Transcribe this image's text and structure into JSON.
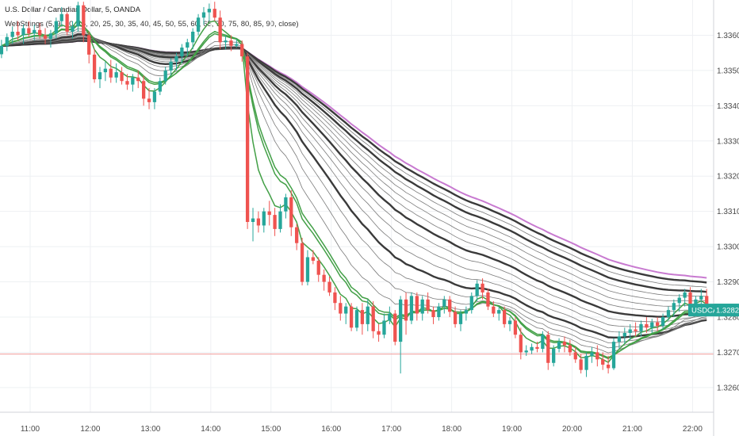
{
  "header": {
    "title": "U.S. Dollar / Canadian Dollar, 5, OANDA",
    "indicator": "WebStrings (5, 9, 10, 15, 20, 25, 30, 35, 40, 45, 50, 55, 60, 65, 70, 75, 80, 85, 90, close)"
  },
  "colors": {
    "up": "#26a69a",
    "down": "#ef5350",
    "grid": "#eef0f3",
    "axis_text": "#4a4a4a",
    "price_line": "#ef9a9a",
    "badge": "#26a69a",
    "ema_fast": "#43a047",
    "ema_thin": "#7a7a7a",
    "ema_thick": "#3a3a3a",
    "ema_slow": "#c87ad0"
  },
  "chart_data": {
    "type": "candlestick",
    "symbol": "USDCAD",
    "last_price": "1.32820",
    "y_ticks": [
      "1.33600",
      "1.33500",
      "1.33400",
      "1.33300",
      "1.33200",
      "1.33100",
      "1.33000",
      "1.32900",
      "1.32800",
      "1.32700",
      "1.32600"
    ],
    "y_tick_values": [
      1.336,
      1.335,
      1.334,
      1.333,
      1.332,
      1.331,
      1.33,
      1.329,
      1.328,
      1.327,
      1.326
    ],
    "x_ticks": [
      "11:00",
      "12:00",
      "13:00",
      "14:00",
      "15:00",
      "16:00",
      "17:00",
      "18:00",
      "19:00",
      "20:00",
      "21:00",
      "22:00"
    ],
    "x_tick_minutes": [
      660,
      720,
      780,
      840,
      900,
      960,
      1020,
      1080,
      1140,
      1200,
      1260,
      1320
    ],
    "ylim": [
      1.3253,
      1.337
    ],
    "xlim_minutes": [
      630,
      1341
    ],
    "horizontal_line": 1.32695,
    "ema_lengths": [
      5,
      9,
      10,
      15,
      20,
      25,
      30,
      35,
      40,
      45,
      50,
      55,
      60,
      65,
      70,
      75,
      80,
      85,
      90
    ],
    "candles": [
      [
        1.33546,
        1.33587,
        1.33535,
        1.3357
      ],
      [
        1.3357,
        1.33605,
        1.33555,
        1.33595
      ],
      [
        1.33595,
        1.33625,
        1.33575,
        1.3361
      ],
      [
        1.3361,
        1.3364,
        1.33585,
        1.336
      ],
      [
        1.336,
        1.3363,
        1.33575,
        1.3362
      ],
      [
        1.3362,
        1.3364,
        1.33595,
        1.33605
      ],
      [
        1.33605,
        1.3363,
        1.33585,
        1.33615
      ],
      [
        1.33615,
        1.33635,
        1.3359,
        1.336
      ],
      [
        1.336,
        1.3362,
        1.33575,
        1.3359
      ],
      [
        1.3359,
        1.33615,
        1.33565,
        1.33605
      ],
      [
        1.33605,
        1.3365,
        1.3359,
        1.3364
      ],
      [
        1.3364,
        1.3368,
        1.33625,
        1.3366
      ],
      [
        1.3366,
        1.33665,
        1.336,
        1.3361
      ],
      [
        1.3361,
        1.3364,
        1.3359,
        1.33625
      ],
      [
        1.33625,
        1.33695,
        1.3361,
        1.33685
      ],
      [
        1.33685,
        1.33695,
        1.3358,
        1.336
      ],
      [
        1.336,
        1.3361,
        1.3352,
        1.33545
      ],
      [
        1.33545,
        1.3356,
        1.33465,
        1.33475
      ],
      [
        1.33475,
        1.3351,
        1.3345,
        1.33495
      ],
      [
        1.33495,
        1.33525,
        1.3347,
        1.33505
      ],
      [
        1.33505,
        1.3353,
        1.33465,
        1.3348
      ],
      [
        1.3348,
        1.3352,
        1.33465,
        1.33495
      ],
      [
        1.33495,
        1.3351,
        1.3346,
        1.3347
      ],
      [
        1.3347,
        1.3349,
        1.33445,
        1.3346
      ],
      [
        1.3346,
        1.3349,
        1.3344,
        1.3348
      ],
      [
        1.3348,
        1.335,
        1.3345,
        1.3347
      ],
      [
        1.3347,
        1.33485,
        1.334,
        1.3342
      ],
      [
        1.3342,
        1.3345,
        1.3339,
        1.3341
      ],
      [
        1.3341,
        1.3345,
        1.3339,
        1.3344
      ],
      [
        1.3344,
        1.3348,
        1.3343,
        1.3347
      ],
      [
        1.3347,
        1.3351,
        1.3346,
        1.335
      ],
      [
        1.335,
        1.33535,
        1.33485,
        1.33525
      ],
      [
        1.33525,
        1.3355,
        1.335,
        1.3354
      ],
      [
        1.3354,
        1.33575,
        1.3352,
        1.33565
      ],
      [
        1.33565,
        1.3359,
        1.3354,
        1.3358
      ],
      [
        1.3358,
        1.3362,
        1.3356,
        1.3361
      ],
      [
        1.3361,
        1.3366,
        1.336,
        1.3365
      ],
      [
        1.3365,
        1.3368,
        1.3363,
        1.33665
      ],
      [
        1.33665,
        1.3369,
        1.3364,
        1.33675
      ],
      [
        1.33675,
        1.33695,
        1.3364,
        1.3365
      ],
      [
        1.3365,
        1.3367,
        1.3356,
        1.3358
      ],
      [
        1.3358,
        1.336,
        1.3356,
        1.33585
      ],
      [
        1.33585,
        1.336,
        1.33555,
        1.3357
      ],
      [
        1.3357,
        1.3359,
        1.33565,
        1.33575
      ],
      [
        1.33575,
        1.33585,
        1.33525,
        1.3354
      ],
      [
        1.3354,
        1.3355,
        1.3305,
        1.3307
      ],
      [
        1.3307,
        1.3311,
        1.33015,
        1.3308
      ],
      [
        1.3308,
        1.331,
        1.3304,
        1.3306
      ],
      [
        1.3306,
        1.3311,
        1.3304,
        1.331
      ],
      [
        1.331,
        1.3313,
        1.3306,
        1.3309
      ],
      [
        1.3309,
        1.3311,
        1.3303,
        1.3305
      ],
      [
        1.3305,
        1.3312,
        1.3304,
        1.331
      ],
      [
        1.331,
        1.3315,
        1.3308,
        1.3314
      ],
      [
        1.3314,
        1.3316,
        1.3303,
        1.33055
      ],
      [
        1.33055,
        1.33065,
        1.3299,
        1.3301
      ],
      [
        1.3301,
        1.33025,
        1.3289,
        1.329
      ],
      [
        1.329,
        1.3299,
        1.3289,
        1.3297
      ],
      [
        1.3297,
        1.3299,
        1.3295,
        1.3296
      ],
      [
        1.3296,
        1.3297,
        1.329,
        1.3292
      ],
      [
        1.3292,
        1.32935,
        1.32875,
        1.329
      ],
      [
        1.329,
        1.32915,
        1.3286,
        1.3287
      ],
      [
        1.3287,
        1.32885,
        1.3282,
        1.3284
      ],
      [
        1.3284,
        1.3286,
        1.3279,
        1.3281
      ],
      [
        1.3281,
        1.3284,
        1.3278,
        1.3283
      ],
      [
        1.3283,
        1.3284,
        1.3276,
        1.3277
      ],
      [
        1.3277,
        1.3283,
        1.3276,
        1.3282
      ],
      [
        1.3282,
        1.3284,
        1.3275,
        1.3278
      ],
      [
        1.3278,
        1.3285,
        1.3276,
        1.3283
      ],
      [
        1.3283,
        1.32845,
        1.3274,
        1.3276
      ],
      [
        1.3276,
        1.3278,
        1.3273,
        1.3275
      ],
      [
        1.3275,
        1.3281,
        1.3274,
        1.3279
      ],
      [
        1.3279,
        1.3283,
        1.3278,
        1.3281
      ],
      [
        1.3281,
        1.3282,
        1.3272,
        1.3273
      ],
      [
        1.3273,
        1.3286,
        1.3264,
        1.3285
      ],
      [
        1.3285,
        1.3287,
        1.3275,
        1.3279
      ],
      [
        1.3279,
        1.3287,
        1.3278,
        1.3286
      ],
      [
        1.3286,
        1.3287,
        1.3279,
        1.3281
      ],
      [
        1.3281,
        1.3286,
        1.3279,
        1.3285
      ],
      [
        1.3285,
        1.3287,
        1.3281,
        1.3282
      ],
      [
        1.3282,
        1.3283,
        1.3278,
        1.328
      ],
      [
        1.328,
        1.3284,
        1.3279,
        1.3283
      ],
      [
        1.3283,
        1.3286,
        1.3281,
        1.3285
      ],
      [
        1.3285,
        1.3286,
        1.328,
        1.32815
      ],
      [
        1.32815,
        1.3283,
        1.3277,
        1.3278
      ],
      [
        1.3278,
        1.3282,
        1.3276,
        1.3281
      ],
      [
        1.3281,
        1.3283,
        1.3279,
        1.3282
      ],
      [
        1.3282,
        1.3287,
        1.3281,
        1.3286
      ],
      [
        1.3286,
        1.32905,
        1.32845,
        1.32895
      ],
      [
        1.32895,
        1.3291,
        1.3285,
        1.3287
      ],
      [
        1.3287,
        1.3288,
        1.3282,
        1.3283
      ],
      [
        1.3283,
        1.32845,
        1.328,
        1.3281
      ],
      [
        1.3281,
        1.3283,
        1.3279,
        1.3282
      ],
      [
        1.3282,
        1.3283,
        1.3277,
        1.3278
      ],
      [
        1.3278,
        1.328,
        1.3276,
        1.3279
      ],
      [
        1.3279,
        1.328,
        1.3274,
        1.3275
      ],
      [
        1.3275,
        1.3277,
        1.3268,
        1.327
      ],
      [
        1.327,
        1.3272,
        1.3269,
        1.32705
      ],
      [
        1.32705,
        1.32725,
        1.32695,
        1.32715
      ],
      [
        1.32715,
        1.3273,
        1.327,
        1.3271
      ],
      [
        1.3271,
        1.3276,
        1.327,
        1.3275
      ],
      [
        1.3275,
        1.3276,
        1.3265,
        1.3267
      ],
      [
        1.3267,
        1.3272,
        1.3266,
        1.3271
      ],
      [
        1.3271,
        1.3274,
        1.327,
        1.3273
      ],
      [
        1.3273,
        1.32745,
        1.327,
        1.3272
      ],
      [
        1.3272,
        1.32735,
        1.3269,
        1.327
      ],
      [
        1.327,
        1.32715,
        1.3267,
        1.3268
      ],
      [
        1.3268,
        1.32695,
        1.3264,
        1.3265
      ],
      [
        1.3265,
        1.327,
        1.3263,
        1.3269
      ],
      [
        1.3269,
        1.32715,
        1.3267,
        1.327
      ],
      [
        1.327,
        1.3272,
        1.3266,
        1.3268
      ],
      [
        1.3268,
        1.327,
        1.3265,
        1.32665
      ],
      [
        1.32665,
        1.3269,
        1.3264,
        1.32655
      ],
      [
        1.32655,
        1.3274,
        1.3265,
        1.3273
      ],
      [
        1.3273,
        1.3276,
        1.3271,
        1.32745
      ],
      [
        1.32745,
        1.3277,
        1.32725,
        1.32755
      ],
      [
        1.32755,
        1.3278,
        1.32735,
        1.32765
      ],
      [
        1.32765,
        1.32785,
        1.32745,
        1.3276
      ],
      [
        1.3276,
        1.3279,
        1.32745,
        1.3278
      ],
      [
        1.3278,
        1.328,
        1.32755,
        1.3277
      ],
      [
        1.3277,
        1.32795,
        1.32755,
        1.32785
      ],
      [
        1.32785,
        1.328,
        1.3276,
        1.32775
      ],
      [
        1.32775,
        1.3281,
        1.32765,
        1.328
      ],
      [
        1.328,
        1.3283,
        1.3279,
        1.3282
      ],
      [
        1.3282,
        1.3285,
        1.328,
        1.3284
      ],
      [
        1.3284,
        1.32865,
        1.32815,
        1.32855
      ],
      [
        1.32855,
        1.3288,
        1.3283,
        1.3287
      ],
      [
        1.3287,
        1.32885,
        1.3281,
        1.3282
      ],
      [
        1.3282,
        1.3286,
        1.3281,
        1.3285
      ],
      [
        1.3285,
        1.3288,
        1.3283,
        1.3286
      ],
      [
        1.3286,
        1.3288,
        1.3281,
        1.3282
      ]
    ]
  }
}
